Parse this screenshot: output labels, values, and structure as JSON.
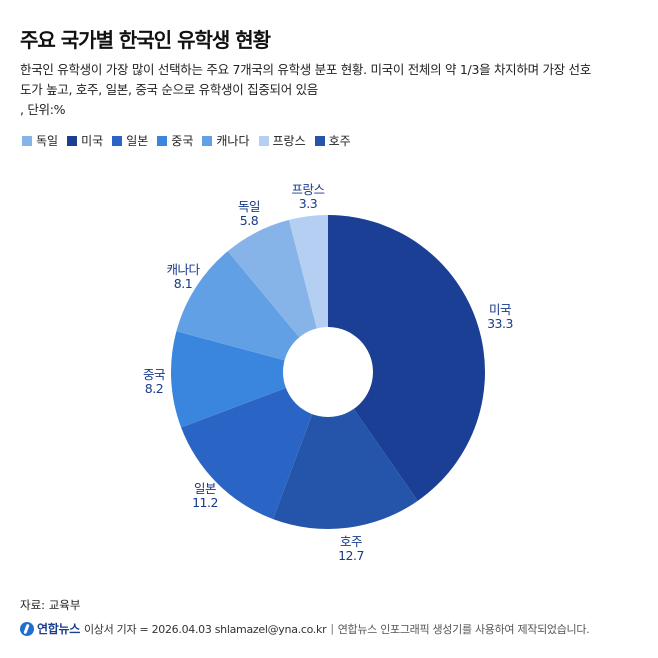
{
  "header": {
    "title": "주요 국가별 한국인 유학생 현황",
    "subtitle_line1": "한국인 유학생이 가장 많이 선택하는 주요 7개국의 유학생 분포 현황. 미국이 전체의 약 1/3을 차지하며 가장 선호",
    "subtitle_line2": "도가 높고, 호주, 일본, 중국 순으로 유학생이 집중되어 있음",
    "unit": ", 단위:%"
  },
  "legend": [
    {
      "label": "독일",
      "color": "#86b4e8"
    },
    {
      "label": "미국",
      "color": "#1b3f94"
    },
    {
      "label": "일본",
      "color": "#2a64c4"
    },
    {
      "label": "중국",
      "color": "#3a85de"
    },
    {
      "label": "캐나다",
      "color": "#62a0e6"
    },
    {
      "label": "프랑스",
      "color": "#b5cff2"
    },
    {
      "label": "호주",
      "color": "#2455ab"
    }
  ],
  "chart_data": {
    "type": "pie",
    "subtype": "donut",
    "title": "주요 국가별 한국인 유학생 현황",
    "unit": "%",
    "categories": [
      "미국",
      "호주",
      "일본",
      "중국",
      "캐나다",
      "독일",
      "프랑스"
    ],
    "values": [
      33.3,
      12.7,
      11.2,
      8.2,
      8.1,
      5.8,
      3.3
    ],
    "colors": [
      "#1b3f94",
      "#2455ab",
      "#2a64c4",
      "#3a85de",
      "#62a0e6",
      "#86b4e8",
      "#b5cff2"
    ],
    "start_angle": "top, clockwise",
    "legend_position": "top",
    "labels": [
      {
        "name": "미국",
        "value": "33.3"
      },
      {
        "name": "호주",
        "value": "12.7"
      },
      {
        "name": "일본",
        "value": "11.2"
      },
      {
        "name": "중국",
        "value": "8.2"
      },
      {
        "name": "캐나다",
        "value": "8.1"
      },
      {
        "name": "독일",
        "value": "5.8"
      },
      {
        "name": "프랑스",
        "value": "3.3"
      }
    ]
  },
  "footer": {
    "source": "자료: 교육부",
    "brand": "연합뉴스",
    "credit": "이상서 기자 = 2026.04.03 shlamazel@yna.co.kr",
    "separator": "|",
    "generator_note": "연합뉴스 인포그래픽 생성기를 사용하여 제작되었습니다."
  }
}
